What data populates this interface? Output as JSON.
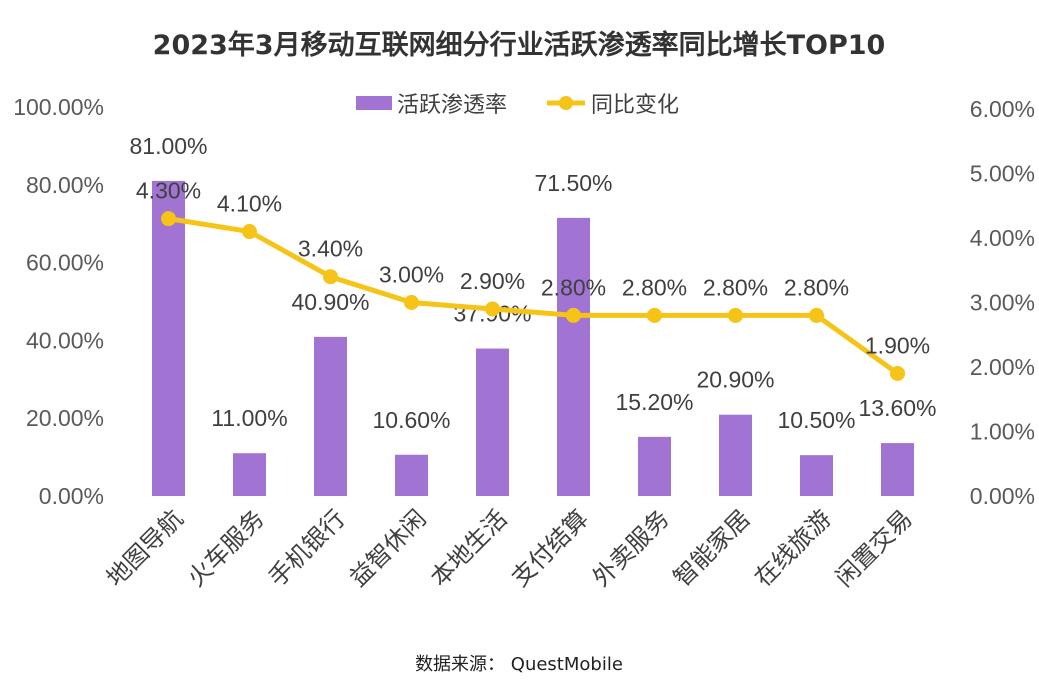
{
  "chart_data": {
    "type": "bar+line",
    "title": "2023年3月移动互联网细分行业活跃渗透率同比增长TOP10",
    "categories": [
      "地图导航",
      "火车服务",
      "手机银行",
      "益智休闲",
      "本地生活",
      "支付结算",
      "外卖服务",
      "智能家居",
      "在线旅游",
      "闲置交易"
    ],
    "series": [
      {
        "name": "活跃渗透率",
        "type": "bar",
        "axis": "left",
        "color": "#a173d2",
        "values": [
          81.0,
          11.0,
          40.9,
          10.6,
          37.9,
          71.5,
          15.2,
          20.9,
          10.5,
          13.6
        ],
        "labels": [
          "81.00%",
          "11.00%",
          "40.90%",
          "10.60%",
          "37.90%",
          "71.50%",
          "15.20%",
          "20.90%",
          "10.50%",
          "13.60%"
        ]
      },
      {
        "name": "同比变化",
        "type": "line",
        "axis": "right",
        "color": "#f5c417",
        "values": [
          4.3,
          4.1,
          3.4,
          3.0,
          2.9,
          2.8,
          2.8,
          2.8,
          2.8,
          1.9
        ],
        "labels": [
          "4.30%",
          "4.10%",
          "3.40%",
          "3.00%",
          "2.90%",
          "2.80%",
          "2.80%",
          "2.80%",
          "2.80%",
          "1.90%"
        ]
      }
    ],
    "y_left": {
      "range": [
        0,
        100
      ],
      "ticks": [
        0,
        20,
        40,
        60,
        80,
        100
      ],
      "tick_labels": [
        "0.00%",
        "20.00%",
        "40.00%",
        "60.00%",
        "80.00%",
        "100.00%"
      ]
    },
    "y_right": {
      "range": [
        0,
        6
      ],
      "ticks": [
        0,
        1,
        2,
        3,
        4,
        5,
        6
      ],
      "tick_labels": [
        "0.00%",
        "1.00%",
        "2.00%",
        "3.00%",
        "4.00%",
        "5.00%",
        "6.00%"
      ]
    },
    "legend": {
      "placement": "top-center",
      "entries": [
        "活跃渗透率",
        "同比变化"
      ]
    },
    "grid": false,
    "source": "数据来源：  QuestMobile"
  }
}
